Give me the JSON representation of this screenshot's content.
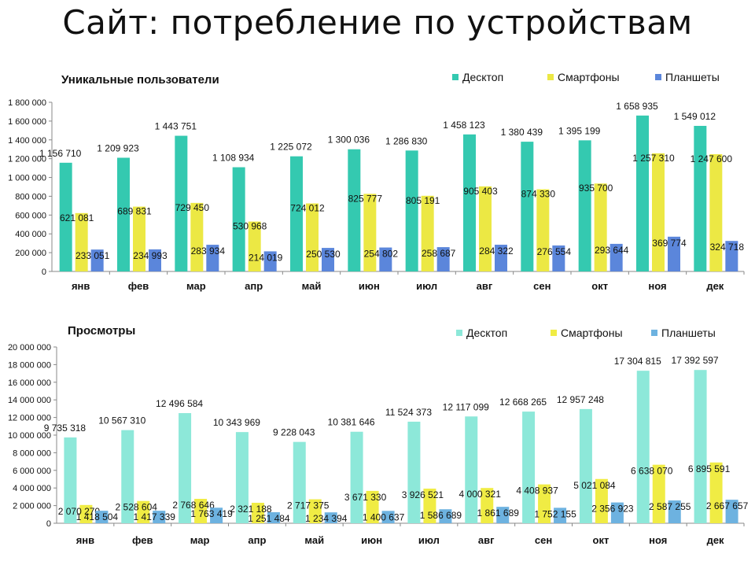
{
  "page_title": "Сайт: потребление по устройствам",
  "colors": {
    "users": [
      "#34c9b0",
      "#ece844",
      "#5b86db"
    ],
    "views": [
      "#8de8d9",
      "#f0ec44",
      "#6db2e0"
    ]
  },
  "chart_data": [
    {
      "type": "bar",
      "title": "Уникальные пользователи",
      "categories": [
        "янв",
        "фев",
        "мар",
        "апр",
        "май",
        "июн",
        "июл",
        "авг",
        "сен",
        "окт",
        "ноя",
        "дек"
      ],
      "series": [
        {
          "name": "Десктоп",
          "values": [
            1156710,
            1209923,
            1443751,
            1108934,
            1225072,
            1300036,
            1286830,
            1458123,
            1380439,
            1395199,
            1658935,
            1549012
          ],
          "labels": [
            "1 156 710",
            "1 209 923",
            "1 443 751",
            "1 108 934",
            "1 225 072",
            "1 300 036",
            "1 286 830",
            "1 458 123",
            "1 380 439",
            "1 395 199",
            "1 658 935",
            "1 549 012"
          ]
        },
        {
          "name": "Смартфоны",
          "values": [
            621081,
            689831,
            729450,
            530968,
            724012,
            825777,
            805191,
            905403,
            874330,
            935700,
            1257310,
            1247600
          ],
          "labels": [
            "621 081",
            "689 831",
            "729 450",
            "530 968",
            "724 012",
            "825 777",
            "805 191",
            "905 403",
            "874 330",
            "935 700",
            "1 257 310",
            "1 247 600"
          ]
        },
        {
          "name": "Планшеты",
          "values": [
            233051,
            234993,
            283934,
            214019,
            250530,
            254802,
            258687,
            284322,
            276554,
            293644,
            369774,
            324718
          ],
          "labels": [
            "233 051",
            "234 993",
            "283 934",
            "214 019",
            "250 530",
            "254 802",
            "258 687",
            "284 322",
            "276 554",
            "293 644",
            "369 774",
            "324 718"
          ]
        }
      ],
      "ylim": [
        0,
        1800000
      ],
      "yticks": [
        "0",
        "200 000",
        "400 000",
        "600 000",
        "800 000",
        "1 000 000",
        "1 200 000",
        "1 400 000",
        "1 600 000",
        "1 800 000"
      ],
      "legend": "top-right"
    },
    {
      "type": "bar",
      "title": "Просмотры",
      "categories": [
        "янв",
        "фев",
        "мар",
        "апр",
        "май",
        "июн",
        "июл",
        "авг",
        "сен",
        "окт",
        "ноя",
        "дек"
      ],
      "series": [
        {
          "name": "Десктоп",
          "values": [
            9735318,
            10567310,
            12496584,
            10343969,
            9228043,
            10381646,
            11524373,
            12117099,
            12668265,
            12957248,
            17304815,
            17392597
          ],
          "labels": [
            "9 735 318",
            "10 567 310",
            "12 496 584",
            "10 343 969",
            "9 228 043",
            "10 381 646",
            "11 524 373",
            "12 117 099",
            "12 668 265",
            "12 957 248",
            "17 304 815",
            "17 392 597"
          ]
        },
        {
          "name": "Смартфоны",
          "values": [
            2070270,
            2528604,
            2768646,
            2321188,
            2717375,
            3671330,
            3926521,
            4000321,
            4408937,
            5021084,
            6638070,
            6895591
          ],
          "labels": [
            "2 070 270",
            "2 528 604",
            "2 768 646",
            "2 321 188",
            "2 717 375",
            "3 671 330",
            "3 926 521",
            "4 000 321",
            "4 408 937",
            "5 021 084",
            "6 638 070",
            "6 895 591"
          ]
        },
        {
          "name": "Планшеты",
          "values": [
            1418504,
            1417339,
            1763419,
            1251484,
            1234394,
            1400637,
            1586689,
            1861689,
            1752155,
            2356923,
            2587255,
            2667657
          ],
          "labels": [
            "1 418 504",
            "1 417 339",
            "1 763 419",
            "1 251 484",
            "1 234 394",
            "1 400 637",
            "1 586 689",
            "1 861 689",
            "1 752 155",
            "2 356 923",
            "2 587 255",
            "2 667 657"
          ]
        }
      ],
      "ylim": [
        0,
        20000000
      ],
      "yticks": [
        "0",
        "2 000 000",
        "4 000 000",
        "6 000 000",
        "8 000 000",
        "10 000 000",
        "12 000 000",
        "14 000 000",
        "16 000 000",
        "18 000 000",
        "20 000 000"
      ],
      "legend": "top-right"
    }
  ]
}
